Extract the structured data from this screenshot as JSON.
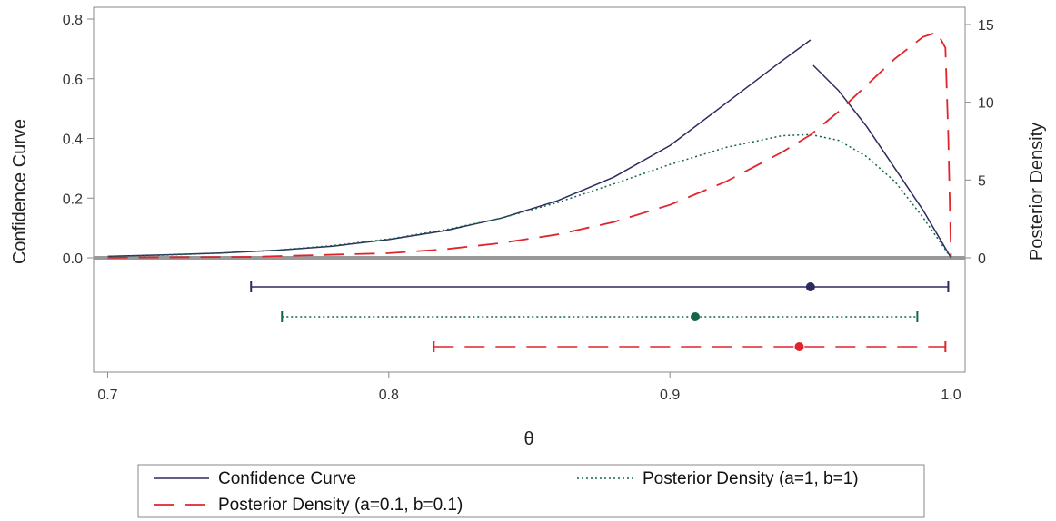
{
  "chart_data": {
    "type": "line",
    "xlabel": "θ",
    "ylabel_left": "Confidence Curve",
    "ylabel_right": "Posterior Density",
    "xlim": [
      0.695,
      1.005
    ],
    "ylim_left": [
      0.0,
      0.8
    ],
    "ylim_right": [
      0,
      15
    ],
    "x_ticks": [
      0.7,
      0.8,
      0.9,
      1.0
    ],
    "x_tick_labels": [
      "0.7",
      "0.8",
      "0.9",
      "1.0"
    ],
    "y_left_ticks": [
      0.0,
      0.2,
      0.4,
      0.6,
      0.8
    ],
    "y_left_tick_labels": [
      "0.0",
      "0.2",
      "0.4",
      "0.6",
      "0.8"
    ],
    "y_right_ticks": [
      0,
      5,
      10,
      15
    ],
    "y_right_tick_labels": [
      "0",
      "5",
      "10",
      "15"
    ],
    "grid": false,
    "legend_position": "bottom",
    "colors": {
      "confidence": "#2b2b5e",
      "posterior_a1": "#11664a",
      "posterior_a01": "#e0242c",
      "frame": "#888888",
      "baseline": "#999999"
    },
    "series": [
      {
        "name": "Confidence Curve",
        "axis": "left",
        "style": "solid",
        "x": [
          0.7,
          0.72,
          0.74,
          0.76,
          0.78,
          0.8,
          0.82,
          0.84,
          0.86,
          0.88,
          0.9,
          0.92,
          0.94,
          0.95,
          0.951,
          0.96,
          0.97,
          0.98,
          0.99,
          1.0
        ],
        "y": [
          0.005,
          0.01,
          0.016,
          0.025,
          0.039,
          0.061,
          0.091,
          0.133,
          0.191,
          0.27,
          0.376,
          0.518,
          0.661,
          0.73,
          0.645,
          0.56,
          0.44,
          0.3,
          0.16,
          0.0
        ]
      },
      {
        "name": "Posterior Density (a=1, b=1)",
        "axis": "right",
        "style": "dotted",
        "x": [
          0.7,
          0.72,
          0.74,
          0.76,
          0.78,
          0.8,
          0.82,
          0.84,
          0.86,
          0.88,
          0.9,
          0.92,
          0.94,
          0.95,
          0.96,
          0.97,
          0.98,
          0.99,
          1.0
        ],
        "y": [
          0.09,
          0.17,
          0.3,
          0.49,
          0.78,
          1.21,
          1.8,
          2.55,
          3.55,
          4.75,
          6.0,
          7.1,
          7.85,
          7.92,
          7.55,
          6.5,
          4.9,
          2.6,
          0.0
        ]
      },
      {
        "name": "Posterior Density (a=0.1, b=0.1)",
        "axis": "right",
        "style": "dashed",
        "x": [
          0.7,
          0.75,
          0.8,
          0.82,
          0.84,
          0.86,
          0.88,
          0.9,
          0.92,
          0.94,
          0.95,
          0.96,
          0.97,
          0.98,
          0.99,
          0.995,
          0.998,
          0.999,
          1.0
        ],
        "y": [
          0.01,
          0.06,
          0.3,
          0.55,
          0.95,
          1.5,
          2.3,
          3.4,
          4.9,
          6.8,
          7.9,
          9.4,
          11.1,
          12.8,
          14.2,
          14.5,
          13.5,
          8.0,
          0.0
        ]
      }
    ],
    "intervals": [
      {
        "series": "Confidence Curve",
        "low": 0.751,
        "point": 0.95,
        "high": 0.999,
        "style": "solid"
      },
      {
        "series": "Posterior Density (a=1, b=1)",
        "low": 0.762,
        "point": 0.909,
        "high": 0.988,
        "style": "dotted"
      },
      {
        "series": "Posterior Density (a=0.1, b=0.1)",
        "low": 0.816,
        "point": 0.946,
        "high": 0.998,
        "style": "dashed"
      }
    ],
    "legend": [
      {
        "label": "Confidence Curve",
        "style": "solid",
        "color": "#2b2b5e"
      },
      {
        "label": "Posterior Density (a=1, b=1)",
        "style": "dotted",
        "color": "#11664a"
      },
      {
        "label": "Posterior Density (a=0.1, b=0.1)",
        "style": "dashed",
        "color": "#e0242c"
      }
    ]
  }
}
